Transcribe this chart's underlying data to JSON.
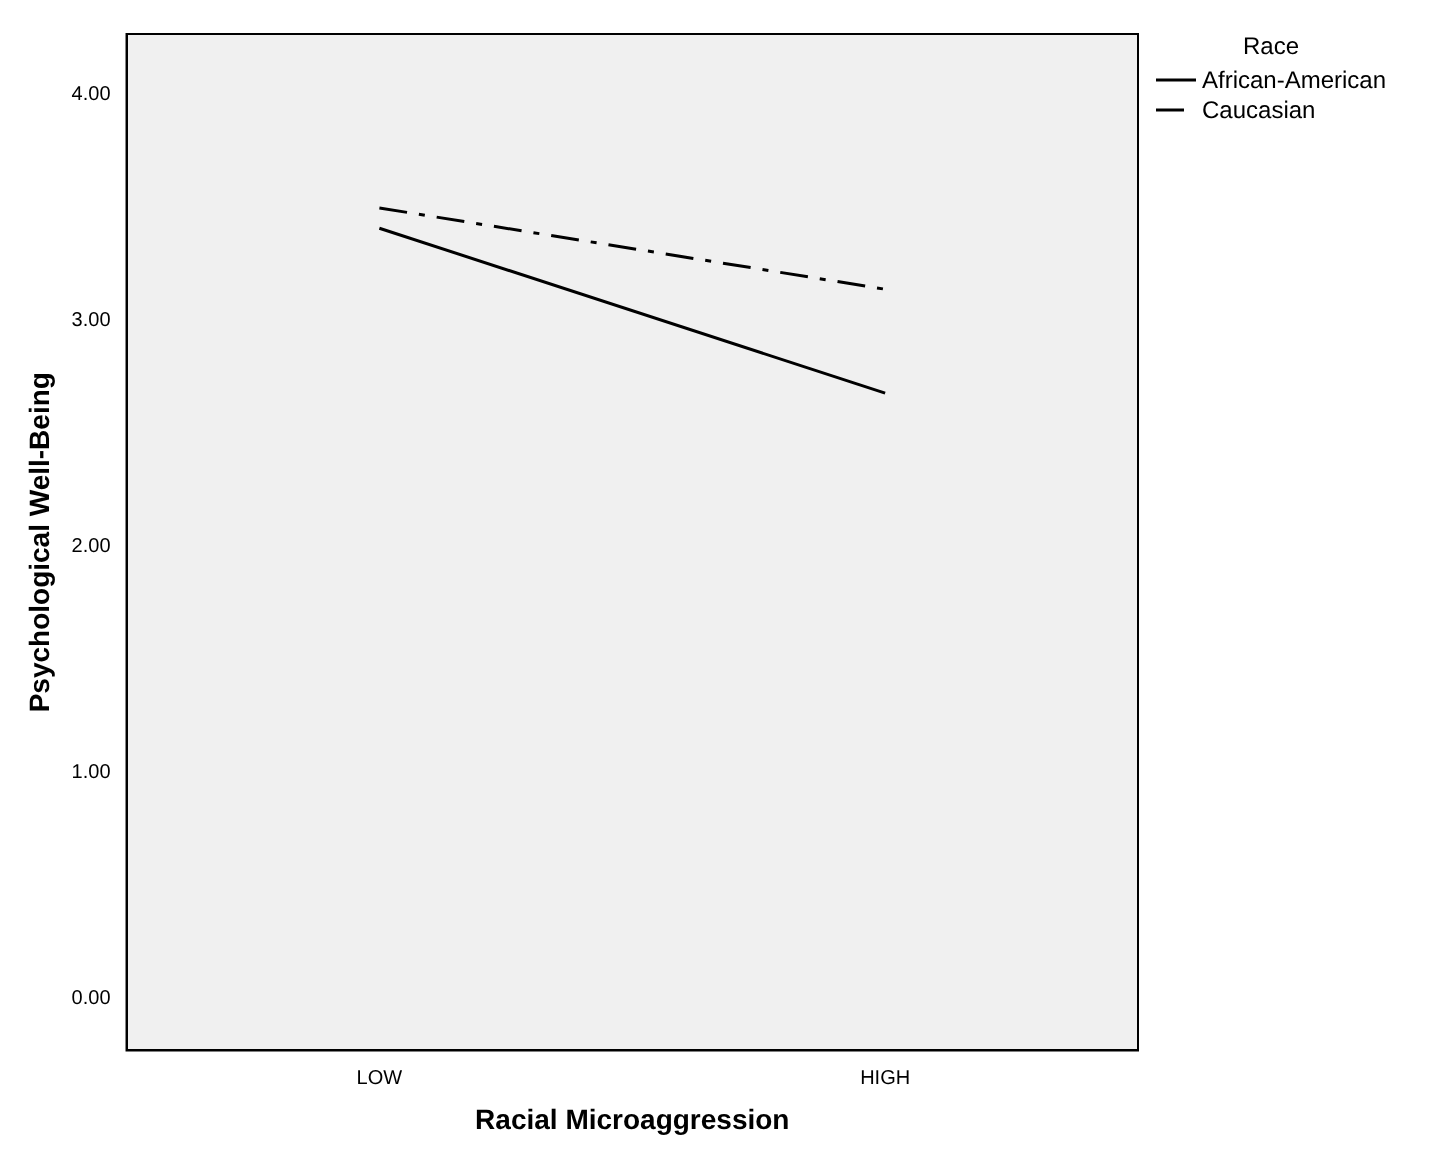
{
  "chart_data": {
    "type": "line",
    "xlabel": "Racial Microaggression",
    "ylabel": "Psychological Well-Being",
    "legend_title": "Race",
    "categories": [
      "LOW",
      "HIGH"
    ],
    "series": [
      {
        "name": "African-American",
        "color": "#000000",
        "values": [
          3.41,
          2.68
        ],
        "line_style": "solid"
      },
      {
        "name": "Caucasian",
        "color": "#000000",
        "values": [
          3.5,
          3.14
        ],
        "line_style": "dashed"
      }
    ],
    "ylim": [
      -0.23,
      4.27
    ],
    "yticks": [
      {
        "value": 0,
        "label": "0.00"
      },
      {
        "value": 1,
        "label": "1.00"
      },
      {
        "value": 2,
        "label": "2.00"
      },
      {
        "value": 3,
        "label": "3.00"
      },
      {
        "value": 4,
        "label": "4.00"
      }
    ],
    "grid": false,
    "legend": "right",
    "marker": "none"
  }
}
